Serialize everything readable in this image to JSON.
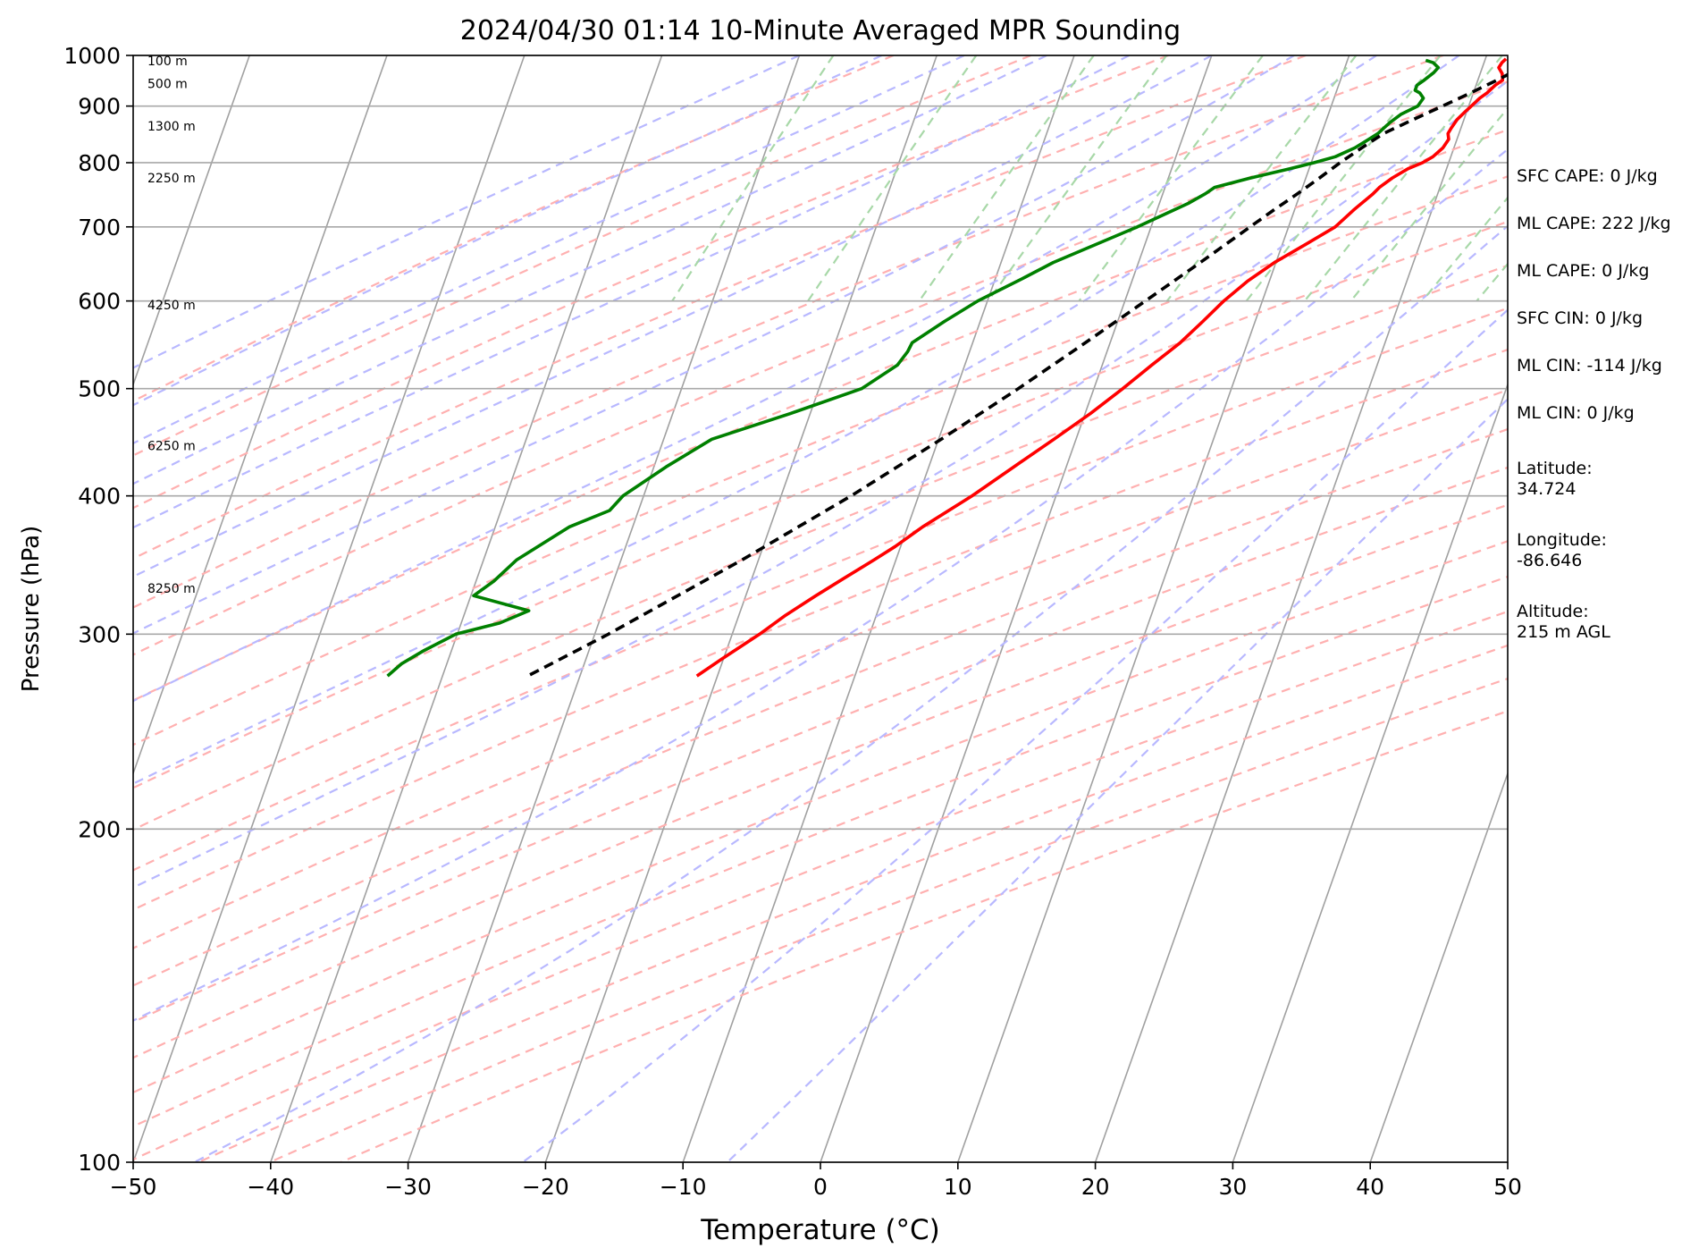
{
  "chart_data": {
    "type": "line",
    "subtype": "skew-T log-P sounding",
    "title": "2024/04/30 01:14 10-Minute Averaged MPR Sounding",
    "xlabel": "Temperature (°C)",
    "ylabel": "Pressure (hPa)",
    "xlim": [
      -50,
      50
    ],
    "ylim": [
      1000,
      100
    ],
    "y_scale": "log",
    "x_ticks": [
      -50,
      -40,
      -30,
      -20,
      -10,
      0,
      10,
      20,
      30,
      40,
      50
    ],
    "x_tick_labels": [
      "−50",
      "−40",
      "−30",
      "−20",
      "−10",
      "0",
      "10",
      "20",
      "30",
      "40",
      "50"
    ],
    "y_ticks": [
      100,
      200,
      300,
      400,
      500,
      600,
      700,
      800,
      900,
      1000
    ],
    "y_tick_labels": [
      "100",
      "200",
      "300",
      "400",
      "500",
      "600",
      "700",
      "800",
      "900",
      "1000"
    ],
    "grid": true,
    "series": [
      {
        "role": "temperature",
        "color": "#ff0000",
        "style": "solid",
        "p": [
          993,
          985,
          975,
          963,
          950,
          940,
          925,
          915,
          900,
          890,
          875,
          860,
          850,
          840,
          825,
          810,
          800,
          790,
          775,
          760,
          750,
          725,
          700,
          675,
          650,
          625,
          600,
          575,
          550,
          525,
          500,
          475,
          450,
          425,
          400,
          375,
          360,
          350,
          337,
          325,
          312,
          300,
          285,
          275
        ],
        "t": [
          21.5,
          21.3,
          21.2,
          21.6,
          21.8,
          21.4,
          21.0,
          20.6,
          20.2,
          19.9,
          19.5,
          19.3,
          19.2,
          19.4,
          19.2,
          18.7,
          18.1,
          17.2,
          16.3,
          15.6,
          15.3,
          14.3,
          13.4,
          11.7,
          9.9,
          8.4,
          7.2,
          6.2,
          5.1,
          3.6,
          2.1,
          0.4,
          -1.6,
          -3.8,
          -6.1,
          -8.9,
          -10.4,
          -11.6,
          -13.3,
          -14.9,
          -16.6,
          -18.0,
          -20.1,
          -21.5
        ]
      },
      {
        "role": "dewpoint",
        "color": "#008000",
        "style": "solid",
        "p": [
          990,
          985,
          975,
          965,
          950,
          940,
          930,
          925,
          915,
          900,
          885,
          870,
          860,
          850,
          840,
          825,
          810,
          800,
          790,
          775,
          760,
          750,
          735,
          700,
          650,
          630,
          600,
          575,
          550,
          540,
          525,
          500,
          475,
          450,
          425,
          400,
          388,
          375,
          350,
          335,
          325,
          315,
          307,
          300,
          290,
          282,
          275
        ],
        "td": [
          15.7,
          16.3,
          16.8,
          16.6,
          16.1,
          15.7,
          15.7,
          16.1,
          16.5,
          16.3,
          15.3,
          14.7,
          14.4,
          14.1,
          13.6,
          12.8,
          11.6,
          10.2,
          8.6,
          6.0,
          3.6,
          3.1,
          2.1,
          -1.0,
          -6.2,
          -7.9,
          -10.7,
          -12.6,
          -14.4,
          -14.5,
          -14.9,
          -16.9,
          -21.4,
          -26.5,
          -29.1,
          -31.5,
          -32.1,
          -34.6,
          -37.6,
          -38.7,
          -39.8,
          -35.4,
          -37.2,
          -40.1,
          -42.0,
          -43.3,
          -44.0
        ]
      },
      {
        "role": "parcel profile",
        "color": "#000000",
        "style": "dashed",
        "p": [
          993,
          950,
          925,
          900,
          875,
          850,
          825,
          800,
          775,
          750,
          725,
          700,
          650,
          600,
          550,
          500,
          450,
          400,
          350,
          300,
          275
        ],
        "t": [
          23.9,
          21.4,
          19.8,
          18.1,
          16.3,
          14.5,
          13.3,
          12.1,
          11.0,
          9.8,
          8.5,
          7.2,
          4.5,
          1.5,
          -1.8,
          -5.5,
          -9.8,
          -14.9,
          -21.2,
          -29.0,
          -33.8
        ]
      }
    ],
    "height_labels": [
      {
        "text": "100 m",
        "p": 989
      },
      {
        "text": "500 m",
        "p": 943
      },
      {
        "text": "1300 m",
        "p": 863
      },
      {
        "text": "2250 m",
        "p": 775
      },
      {
        "text": "4250 m",
        "p": 595
      },
      {
        "text": "6250 m",
        "p": 444
      },
      {
        "text": "8250 m",
        "p": 330
      }
    ],
    "background_lines": {
      "isotherms": {
        "color": "#a0a0a0",
        "style": "solid"
      },
      "dry_adiabats": {
        "color": "#ffb0b0",
        "style": "dashed"
      },
      "moist_adiabats": {
        "color": "#b8b8ff",
        "style": "dashed"
      },
      "mixing_ratios": {
        "color": "#a8d8a8",
        "style": "dashed"
      }
    }
  },
  "info": {
    "sfc_cape": "SFC CAPE: 0 J/kg",
    "ml_cape_1": "ML CAPE: 222 J/kg",
    "ml_cape_2": "ML CAPE: 0 J/kg",
    "sfc_cin": "SFC CIN: 0 J/kg",
    "ml_cin_1": "ML CIN: -114 J/kg",
    "ml_cin_2": "ML CIN: 0 J/kg",
    "latitude": "Latitude:\n34.724",
    "longitude": "Longitude:\n-86.646",
    "altitude": "Altitude:\n215 m AGL"
  }
}
